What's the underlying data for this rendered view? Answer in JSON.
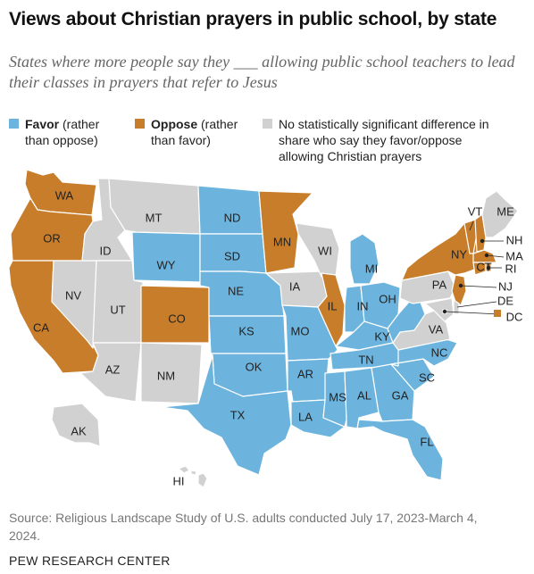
{
  "title": "Views about Christian prayers in public school, by state",
  "subtitle": "States where more people say they ___ allowing public school teachers to lead their classes in prayers that refer to Jesus",
  "legend": {
    "favor": {
      "bold": "Favor",
      "rest1": " (rather",
      "rest2": "than oppose)"
    },
    "oppose": {
      "bold": "Oppose",
      "rest1": " (rather",
      "rest2": "than favor)"
    },
    "nodiff": {
      "line1": "No statistically significant difference in",
      "line2": "share who say they favor/oppose",
      "line3": "allowing Christian prayers"
    }
  },
  "colors": {
    "favor": "#6cb4dd",
    "oppose": "#c77d2a",
    "nodiff": "#d1d1d1",
    "border": "#ffffff"
  },
  "states": {
    "WA": "oppose",
    "OR": "oppose",
    "CA": "oppose",
    "CO": "oppose",
    "MN": "oppose",
    "IL": "oppose",
    "NY": "oppose",
    "VT": "oppose",
    "NH": "oppose",
    "MA": "oppose",
    "CT": "oppose",
    "RI": "oppose",
    "NJ": "oppose",
    "DC": "oppose",
    "ND": "favor",
    "SD": "favor",
    "WY": "favor",
    "NE": "favor",
    "KS": "favor",
    "OK": "favor",
    "TX": "favor",
    "MO": "favor",
    "AR": "favor",
    "LA": "favor",
    "MS": "favor",
    "AL": "favor",
    "GA": "favor",
    "FL": "favor",
    "SC": "favor",
    "NC": "favor",
    "TN": "favor",
    "KY": "favor",
    "IN": "favor",
    "OH": "favor",
    "MI": "favor",
    "WV": "favor",
    "MT": "nodiff",
    "ID": "nodiff",
    "NV": "nodiff",
    "UT": "nodiff",
    "AZ": "nodiff",
    "NM": "nodiff",
    "IA": "nodiff",
    "WI": "nodiff",
    "PA": "nodiff",
    "VA": "nodiff",
    "DE": "nodiff",
    "MD": "nodiff",
    "ME": "nodiff",
    "AK": "nodiff",
    "HI": "nodiff"
  },
  "labels": {
    "WA": "WA",
    "OR": "OR",
    "CA": "CA",
    "NV": "NV",
    "ID": "ID",
    "MT": "MT",
    "WY": "WY",
    "UT": "UT",
    "CO": "CO",
    "AZ": "AZ",
    "NM": "NM",
    "ND": "ND",
    "SD": "SD",
    "NE": "NE",
    "KS": "KS",
    "OK": "OK",
    "TX": "TX",
    "MN": "MN",
    "IA": "IA",
    "MO": "MO",
    "AR": "AR",
    "LA": "LA",
    "WI": "WI",
    "IL": "IL",
    "MI": "MI",
    "IN": "IN",
    "OH": "OH",
    "KY": "KY",
    "TN": "TN",
    "MS": "MS",
    "AL": "AL",
    "GA": "GA",
    "FL": "FL",
    "SC": "SC",
    "NC": "NC",
    "VA": "VA",
    "PA": "PA",
    "NY": "NY",
    "VT": "VT",
    "ME": "ME",
    "NH": "NH",
    "MA": "MA",
    "RI": "RI",
    "CT": "CT",
    "NJ": "NJ",
    "DE": "DE",
    "DC": "DC",
    "AK": "AK",
    "HI": "HI"
  },
  "source": "Source: Religious Landscape Study of U.S. adults conducted July 17, 2023-March 4, 2024.",
  "footer": "PEW RESEARCH CENTER"
}
